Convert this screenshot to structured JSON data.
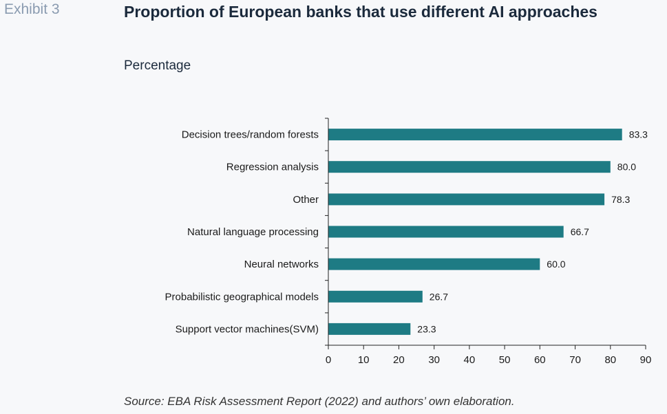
{
  "header": {
    "exhibit_label": "Exhibit 3",
    "title": "Proportion of European banks that use different AI approaches",
    "subtitle": "Percentage"
  },
  "footer": {
    "source": "Source: EBA Risk Assessment Report (2022) and authors’ own elaboration."
  },
  "colors": {
    "bar": "#1e7b84",
    "axis": "#222222"
  },
  "chart_data": {
    "type": "bar",
    "orientation": "horizontal",
    "title": "Proportion of European banks that use different AI approaches",
    "subtitle": "Percentage",
    "xlabel": "",
    "ylabel": "",
    "xlim": [
      0,
      90
    ],
    "xticks": [
      0,
      10,
      20,
      30,
      40,
      50,
      60,
      70,
      80,
      90
    ],
    "grid": false,
    "categories": [
      "Decision trees/random forests",
      "Regression analysis",
      "Other",
      "Natural language processing",
      "Neural networks",
      "Probabilistic geographical models",
      "Support vector machines(SVM)"
    ],
    "values": [
      83.3,
      80.0,
      78.3,
      66.7,
      60.0,
      26.7,
      23.3
    ],
    "data_labels": [
      "83.3",
      "80.0",
      "78.3",
      "66.7",
      "60.0",
      "26.7",
      "23.3"
    ]
  }
}
